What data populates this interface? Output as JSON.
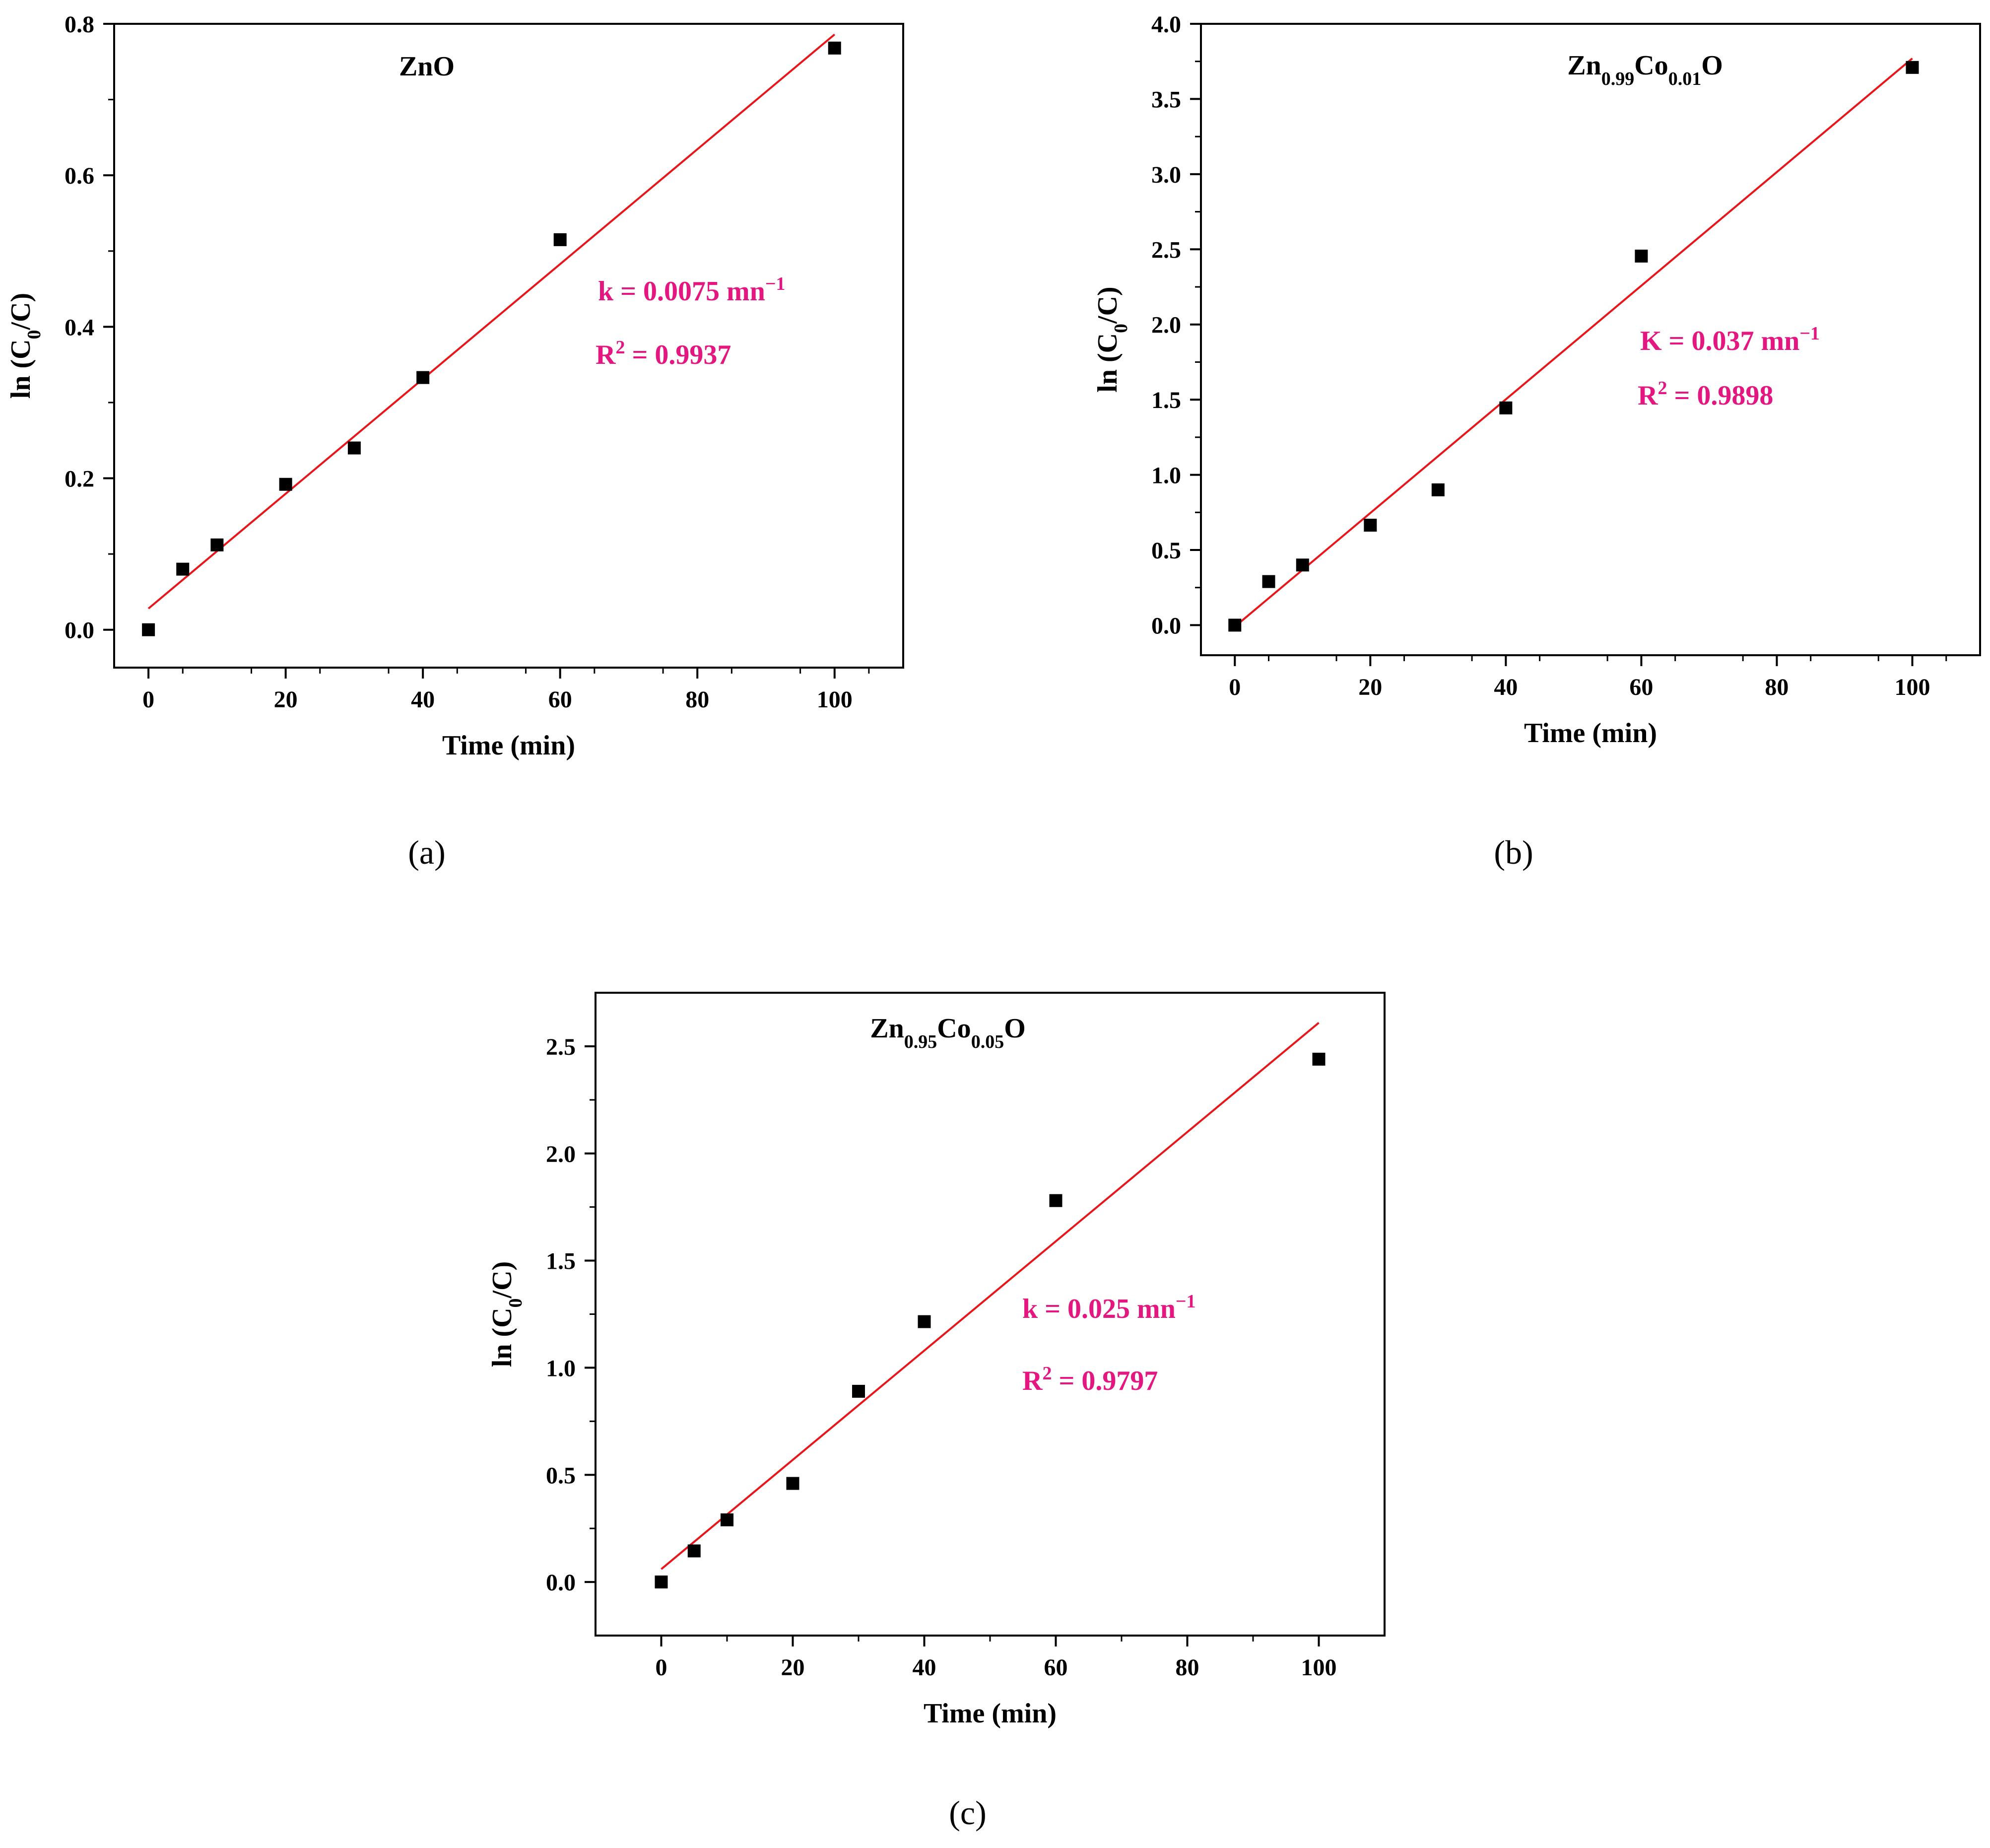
{
  "chart_data": [
    {
      "type": "scatter",
      "panel_label": "(a)",
      "series_name": "ZnO",
      "xlabel": "Time (min)",
      "ylabel": {
        "base": "ln (C",
        "sub": "0",
        "tail": "/C)"
      },
      "xlim": [
        -5,
        110
      ],
      "ylim": [
        -0.05,
        0.8
      ],
      "x_ticks": [
        0,
        20,
        40,
        60,
        80,
        100
      ],
      "y_ticks": [
        0.0,
        0.2,
        0.4,
        0.6,
        0.8
      ],
      "y_tick_labels": [
        "0.0",
        "0.2",
        "0.4",
        "0.6",
        "0.8"
      ],
      "points": [
        {
          "x": 0,
          "y": 0.0
        },
        {
          "x": 5,
          "y": 0.08
        },
        {
          "x": 10,
          "y": 0.112
        },
        {
          "x": 20,
          "y": 0.192
        },
        {
          "x": 30,
          "y": 0.24
        },
        {
          "x": 40,
          "y": 0.333
        },
        {
          "x": 60,
          "y": 0.515
        },
        {
          "x": 100,
          "y": 0.768
        }
      ],
      "fit": {
        "x0": 0,
        "y0": 0.028,
        "x1": 100,
        "y1": 0.786
      },
      "annotation_k": {
        "base": "k = 0.0075 mn",
        "sup": "−1"
      },
      "annotation_r2": {
        "base": "R",
        "sup": "2",
        "tail": " = 0.9937"
      }
    },
    {
      "type": "scatter",
      "panel_label": "(b)",
      "series_name": {
        "parts": [
          "Zn",
          "0.99",
          "Co",
          "0.01",
          "O"
        ]
      },
      "xlabel": "Time (min)",
      "ylabel": {
        "base": "ln (C",
        "sub": "0",
        "tail": "/C)"
      },
      "xlim": [
        -5,
        110
      ],
      "ylim": [
        -0.2,
        4.0
      ],
      "x_ticks": [
        0,
        20,
        40,
        60,
        80,
        100
      ],
      "y_ticks": [
        0.0,
        0.5,
        1.0,
        1.5,
        2.0,
        2.5,
        3.0,
        3.5,
        4.0
      ],
      "y_tick_labels": [
        "0.0",
        "0.5",
        "1.0",
        "1.5",
        "2.0",
        "2.5",
        "3.0",
        "3.5",
        "4.0"
      ],
      "points": [
        {
          "x": 0,
          "y": 0.0
        },
        {
          "x": 5,
          "y": 0.29
        },
        {
          "x": 10,
          "y": 0.4
        },
        {
          "x": 20,
          "y": 0.665
        },
        {
          "x": 30,
          "y": 0.9
        },
        {
          "x": 40,
          "y": 1.445
        },
        {
          "x": 60,
          "y": 2.455
        },
        {
          "x": 100,
          "y": 3.71
        }
      ],
      "fit": {
        "x0": 0,
        "y0": -0.01,
        "x1": 100,
        "y1": 3.77
      },
      "annotation_k": {
        "base": "K = 0.037 mn",
        "sup": "−1"
      },
      "annotation_r2": {
        "base": "R",
        "sup": "2",
        "tail": " = 0.9898"
      }
    },
    {
      "type": "scatter",
      "panel_label": "(c)",
      "series_name": {
        "parts": [
          "Zn",
          "0.95",
          "Co",
          "0.05",
          "O"
        ]
      },
      "xlabel": "Time (min)",
      "ylabel": {
        "base": "ln (C",
        "sub": "0",
        "tail": "/C)"
      },
      "xlim": [
        -10,
        110
      ],
      "ylim": [
        -0.25,
        2.75
      ],
      "x_ticks": [
        0,
        20,
        40,
        60,
        80,
        100
      ],
      "y_ticks": [
        0.0,
        0.5,
        1.0,
        1.5,
        2.0,
        2.5
      ],
      "y_tick_labels": [
        "0.0",
        "0.5",
        "1.0",
        "1.5",
        "2.0",
        "2.5"
      ],
      "points": [
        {
          "x": 0,
          "y": 0.0
        },
        {
          "x": 5,
          "y": 0.145
        },
        {
          "x": 10,
          "y": 0.29
        },
        {
          "x": 20,
          "y": 0.46
        },
        {
          "x": 30,
          "y": 0.89
        },
        {
          "x": 40,
          "y": 1.215
        },
        {
          "x": 60,
          "y": 1.78
        },
        {
          "x": 100,
          "y": 2.44
        }
      ],
      "fit": {
        "x0": 0,
        "y0": 0.06,
        "x1": 100,
        "y1": 2.61
      },
      "annotation_k": {
        "base": "k = 0.025 mn",
        "sup": "−1"
      },
      "annotation_r2": {
        "base": "R",
        "sup": "2",
        "tail": " = 0.9797"
      }
    }
  ],
  "colors": {
    "fit_line": "#e8161a",
    "marker": "#000000",
    "annotation": "#e3177f",
    "axis": "#000000"
  }
}
